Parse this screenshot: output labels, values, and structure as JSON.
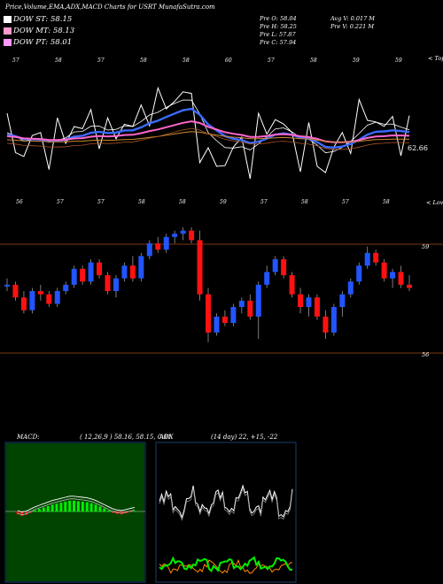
{
  "header": {
    "title": "Price,Volume,EMA,ADX,MACD Charts for USRT MunafaSutra.com"
  },
  "legend": [
    {
      "label": "DOW ST: 58.15",
      "color": "#ffffff"
    },
    {
      "label": "DOW MT: 58.13",
      "color": "#ff99cc"
    },
    {
      "label": "DOW PT: 58.01",
      "color": "#ff99ff"
    }
  ],
  "stats": {
    "col1": [
      "Pre O: 58.04",
      "Pre H: 58.25",
      "Pre L: 57.87",
      "Pre C: 57.94"
    ],
    "col2": [
      "Avg V: 0.017 M",
      "Pre V: 0.221 M"
    ]
  },
  "ema_panel": {
    "top_label": "< Tops",
    "value_label": "62.66",
    "top_nums": [
      "57",
      "58",
      "57",
      "58",
      "58",
      "60",
      "57",
      "58",
      "59",
      "59"
    ]
  },
  "price_panel": {
    "low_label": "< Lows",
    "level_high": "59",
    "level_low": "56",
    "low_nums": [
      "56",
      "57",
      "57",
      "58",
      "58",
      "59",
      "57",
      "58",
      "57",
      "58"
    ]
  },
  "macd": {
    "title": "MACD:",
    "params": "( 12,26,9 ) 58.16, 58.15, 0.01"
  },
  "adx": {
    "title": "ADX",
    "params": "(14 day) 22, +15, -22"
  },
  "colors": {
    "up": "#2255ff",
    "down": "#ff1111",
    "green": "#00ee00",
    "orange": "#ff8800",
    "orangeLine": "#a0522d",
    "panelBorder": "#1c3c6c"
  },
  "chart_data": {
    "type": "candlestick",
    "ohlc": [
      [
        57.9,
        58.1,
        57.7,
        57.9
      ],
      [
        57.9,
        58.0,
        57.4,
        57.5
      ],
      [
        57.5,
        57.7,
        57.0,
        57.1
      ],
      [
        57.1,
        57.8,
        57.0,
        57.7
      ],
      [
        57.7,
        57.9,
        57.4,
        57.6
      ],
      [
        57.6,
        57.7,
        57.2,
        57.3
      ],
      [
        57.3,
        57.8,
        57.2,
        57.7
      ],
      [
        57.7,
        58.0,
        57.6,
        57.9
      ],
      [
        57.9,
        58.5,
        57.8,
        58.4
      ],
      [
        58.4,
        58.5,
        57.9,
        58.0
      ],
      [
        58.0,
        58.7,
        57.9,
        58.6
      ],
      [
        58.6,
        58.7,
        58.1,
        58.2
      ],
      [
        58.2,
        58.3,
        57.6,
        57.7
      ],
      [
        57.7,
        58.2,
        57.5,
        58.1
      ],
      [
        58.1,
        58.6,
        58.0,
        58.5
      ],
      [
        58.5,
        58.8,
        58.0,
        58.1
      ],
      [
        58.1,
        58.9,
        58.0,
        58.8
      ],
      [
        58.8,
        59.3,
        58.7,
        59.2
      ],
      [
        59.2,
        59.4,
        58.9,
        59.0
      ],
      [
        59.0,
        59.5,
        58.9,
        59.4
      ],
      [
        59.4,
        59.6,
        59.2,
        59.5
      ],
      [
        59.5,
        59.7,
        59.3,
        59.6
      ],
      [
        59.6,
        59.7,
        59.2,
        59.3
      ],
      [
        59.3,
        59.6,
        57.4,
        57.6
      ],
      [
        57.6,
        57.8,
        56.1,
        56.4
      ],
      [
        56.4,
        57.0,
        56.3,
        56.9
      ],
      [
        56.9,
        57.1,
        56.6,
        56.7
      ],
      [
        56.7,
        57.3,
        56.6,
        57.2
      ],
      [
        57.2,
        57.5,
        57.0,
        57.4
      ],
      [
        57.4,
        57.6,
        56.8,
        56.9
      ],
      [
        56.9,
        58.0,
        56.2,
        57.9
      ],
      [
        57.9,
        58.5,
        57.8,
        58.3
      ],
      [
        58.3,
        58.8,
        58.2,
        58.7
      ],
      [
        58.7,
        58.8,
        58.1,
        58.2
      ],
      [
        58.2,
        58.3,
        57.5,
        57.6
      ],
      [
        57.6,
        57.8,
        57.0,
        57.2
      ],
      [
        57.2,
        57.6,
        56.9,
        57.5
      ],
      [
        57.5,
        57.6,
        56.8,
        56.9
      ],
      [
        56.9,
        57.1,
        56.2,
        56.4
      ],
      [
        56.4,
        57.3,
        56.3,
        57.2
      ],
      [
        57.2,
        57.7,
        56.9,
        57.6
      ],
      [
        57.6,
        58.1,
        57.5,
        58.0
      ],
      [
        58.0,
        58.6,
        57.9,
        58.5
      ],
      [
        58.5,
        59.1,
        58.4,
        58.9
      ],
      [
        58.9,
        59.0,
        58.5,
        58.6
      ],
      [
        58.6,
        58.7,
        58.0,
        58.1
      ],
      [
        58.1,
        58.4,
        57.8,
        58.3
      ],
      [
        58.3,
        58.5,
        57.8,
        57.9
      ],
      [
        57.9,
        58.2,
        57.7,
        57.8
      ]
    ],
    "macd_hist": [
      -0.05,
      -0.08,
      -0.06,
      -0.02,
      0.02,
      0.05,
      0.08,
      0.11,
      0.14,
      0.16,
      0.18,
      0.2,
      0.22,
      0.22,
      0.21,
      0.2,
      0.19,
      0.17,
      0.14,
      0.1,
      0.06,
      0.02,
      -0.02,
      -0.04,
      -0.05,
      -0.03,
      -0.01,
      0.01
    ]
  }
}
